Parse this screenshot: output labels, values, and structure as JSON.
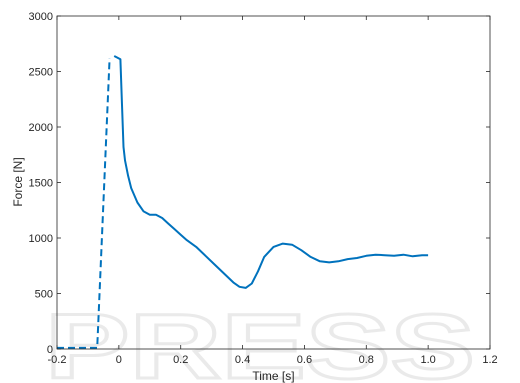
{
  "watermark": "PRESS",
  "chart_data": {
    "type": "line",
    "xlabel": "Time [s]",
    "ylabel": "Force [N]",
    "xlim": [
      -0.2,
      1.2
    ],
    "ylim": [
      0,
      3000
    ],
    "xticks": [
      -0.2,
      0,
      0.2,
      0.4,
      0.6,
      0.8,
      1.0,
      1.2
    ],
    "xtick_labels": [
      "-0.2",
      "0",
      "0.2",
      "0.4",
      "0.6",
      "0.8",
      "1.0",
      "1.2"
    ],
    "yticks": [
      0,
      500,
      1000,
      1500,
      2000,
      2500,
      3000
    ],
    "ytick_labels": [
      "0",
      "500",
      "1000",
      "1500",
      "2000",
      "2500",
      "3000"
    ],
    "grid": false,
    "colors": {
      "line": "#0072BD",
      "axis": "#262626"
    },
    "series": [
      {
        "style": "dashed",
        "x": [
          -0.2,
          -0.07,
          -0.07,
          -0.03
        ],
        "y": [
          10,
          10,
          10,
          2620
        ]
      },
      {
        "style": "solid",
        "x": [
          -0.015,
          0.005,
          0.01,
          0.015,
          0.02,
          0.03,
          0.04,
          0.06,
          0.08,
          0.1,
          0.12,
          0.14,
          0.16,
          0.18,
          0.2,
          0.22,
          0.25,
          0.28,
          0.31,
          0.34,
          0.37,
          0.39,
          0.41,
          0.43,
          0.45,
          0.47,
          0.5,
          0.53,
          0.56,
          0.59,
          0.62,
          0.65,
          0.68,
          0.71,
          0.74,
          0.77,
          0.8,
          0.83,
          0.86,
          0.89,
          0.92,
          0.95,
          0.98,
          1.0
        ],
        "y": [
          2640,
          2610,
          2200,
          1820,
          1700,
          1560,
          1450,
          1320,
          1240,
          1210,
          1210,
          1180,
          1130,
          1080,
          1030,
          980,
          920,
          840,
          760,
          680,
          600,
          560,
          550,
          590,
          700,
          830,
          920,
          950,
          940,
          890,
          830,
          790,
          780,
          790,
          810,
          820,
          840,
          850,
          845,
          840,
          850,
          835,
          845,
          845
        ]
      }
    ]
  }
}
